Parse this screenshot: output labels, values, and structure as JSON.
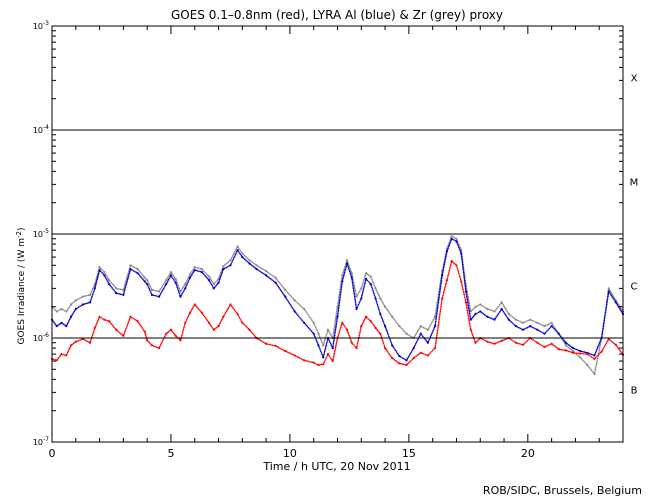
{
  "chart_data": {
    "type": "scatter",
    "title": "GOES 0.1–0.8nm (red), LYRA Al (blue) & Zr (grey) proxy",
    "xlabel": "Time / h UTC, 20 Nov 2011",
    "ylabel": "GOES Irradiance / (W m",
    "ylabel_exponent": "-2",
    "ylabel_close": ")",
    "xlim": [
      0,
      24
    ],
    "ylim": [
      1e-07,
      0.001
    ],
    "yscale": "log",
    "x_ticks": [
      {
        "value": 0,
        "label": "0"
      },
      {
        "value": 5,
        "label": "5"
      },
      {
        "value": 10,
        "label": "10"
      },
      {
        "value": 15,
        "label": "15"
      },
      {
        "value": 20,
        "label": "20"
      }
    ],
    "x_minor_step": 1,
    "y_ticks": [
      {
        "value": 0.001,
        "base": "10",
        "exp": "-3"
      },
      {
        "value": 0.0001,
        "base": "10",
        "exp": "-4"
      },
      {
        "value": 1e-05,
        "base": "10",
        "exp": "-5"
      },
      {
        "value": 1e-06,
        "base": "10",
        "exp": "-6"
      },
      {
        "value": 1e-07,
        "base": "10",
        "exp": "-7"
      }
    ],
    "threshold_lines": [
      0.0001,
      1e-05,
      1e-06
    ],
    "class_labels": [
      {
        "label": "X",
        "value": 0.00032
      },
      {
        "label": "M",
        "value": 3.2e-05
      },
      {
        "label": "C",
        "value": 3.2e-06
      },
      {
        "label": "B",
        "value": 3.2e-07
      }
    ],
    "series": [
      {
        "color": "#ff0000",
        "x": [
          0.0,
          0.2,
          0.4,
          0.6,
          0.8,
          1.0,
          1.3,
          1.6,
          1.8,
          2.0,
          2.2,
          2.4,
          2.7,
          3.0,
          3.3,
          3.6,
          3.9,
          4.0,
          4.2,
          4.5,
          4.8,
          5.0,
          5.2,
          5.4,
          5.6,
          5.8,
          6.0,
          6.3,
          6.6,
          6.8,
          7.0,
          7.2,
          7.5,
          7.8,
          8.0,
          8.3,
          8.6,
          9.0,
          9.4,
          9.8,
          10.2,
          10.6,
          11.0,
          11.2,
          11.4,
          11.6,
          11.8,
          12.0,
          12.2,
          12.4,
          12.6,
          12.8,
          13.0,
          13.2,
          13.4,
          13.6,
          13.8,
          14.0,
          14.3,
          14.6,
          14.9,
          15.2,
          15.5,
          15.8,
          16.1,
          16.4,
          16.6,
          16.8,
          17.0,
          17.2,
          17.4,
          17.6,
          17.8,
          18.0,
          18.3,
          18.6,
          18.9,
          19.2,
          19.5,
          19.8,
          20.1,
          20.4,
          20.7,
          21.0,
          21.3,
          21.6,
          21.9,
          22.2,
          22.5,
          22.8,
          23.1,
          23.4,
          23.7,
          24.0
        ],
        "y": [
          6.3e-07,
          6.1e-07,
          7e-07,
          6.8e-07,
          8.5e-07,
          9.2e-07,
          9.8e-07,
          9e-07,
          1.25e-06,
          1.6e-06,
          1.5e-06,
          1.45e-06,
          1.2e-06,
          1.05e-06,
          1.6e-06,
          1.45e-06,
          1.15e-06,
          9.5e-07,
          8.5e-07,
          8e-07,
          1.1e-06,
          1.2e-06,
          1.05e-06,
          9.5e-07,
          1.4e-06,
          1.75e-06,
          2.1e-06,
          1.75e-06,
          1.4e-06,
          1.2e-06,
          1.3e-06,
          1.6e-06,
          2.1e-06,
          1.7e-06,
          1.4e-06,
          1.2e-06,
          1e-06,
          8.8e-07,
          8.4e-07,
          7.5e-07,
          6.8e-07,
          6.1e-07,
          5.8e-07,
          5.5e-07,
          5.6e-07,
          7e-07,
          6e-07,
          1e-06,
          1.4e-06,
          1.2e-06,
          9e-07,
          8e-07,
          1.3e-06,
          1.6e-06,
          1.45e-06,
          1.25e-06,
          1.1e-06,
          8e-07,
          6.4e-07,
          5.7e-07,
          5.5e-07,
          6.4e-07,
          7.2e-07,
          6.8e-07,
          8e-07,
          2.4e-06,
          3.6e-06,
          5.5e-06,
          5e-06,
          3.5e-06,
          2.2e-06,
          1.2e-06,
          9e-07,
          1e-06,
          9.2e-07,
          8.8e-07,
          9.4e-07,
          1e-06,
          9e-07,
          8.6e-07,
          1e-06,
          9e-07,
          8.2e-07,
          8.8e-07,
          7.8e-07,
          7.6e-07,
          7.2e-07,
          7.1e-07,
          7e-07,
          6.3e-07,
          7.4e-07,
          9.8e-07,
          8.6e-07,
          6.9e-07
        ]
      },
      {
        "color": "#0000cc",
        "x": [
          0.0,
          0.2,
          0.4,
          0.6,
          0.8,
          1.0,
          1.3,
          1.6,
          1.8,
          2.0,
          2.2,
          2.4,
          2.7,
          3.0,
          3.3,
          3.6,
          3.9,
          4.0,
          4.2,
          4.5,
          4.8,
          5.0,
          5.2,
          5.4,
          5.6,
          5.8,
          6.0,
          6.3,
          6.6,
          6.8,
          7.0,
          7.2,
          7.5,
          7.8,
          8.0,
          8.3,
          8.6,
          9.0,
          9.4,
          9.8,
          10.2,
          10.6,
          11.0,
          11.2,
          11.4,
          11.6,
          11.8,
          12.0,
          12.2,
          12.4,
          12.6,
          12.8,
          13.0,
          13.2,
          13.4,
          13.6,
          13.8,
          14.0,
          14.3,
          14.6,
          14.9,
          15.2,
          15.5,
          15.8,
          16.1,
          16.4,
          16.6,
          16.8,
          17.0,
          17.2,
          17.4,
          17.6,
          17.8,
          18.0,
          18.3,
          18.6,
          18.9,
          19.2,
          19.5,
          19.8,
          20.1,
          20.4,
          20.7,
          21.0,
          21.3,
          21.6,
          21.9,
          22.2,
          22.5,
          22.8,
          23.1,
          23.4,
          23.7,
          24.0
        ],
        "y": [
          1.5e-06,
          1.3e-06,
          1.4e-06,
          1.3e-06,
          1.6e-06,
          1.9e-06,
          2.1e-06,
          2.2e-06,
          3e-06,
          4.5e-06,
          4e-06,
          3.3e-06,
          2.7e-06,
          2.6e-06,
          4.6e-06,
          4.2e-06,
          3.5e-06,
          3.3e-06,
          2.6e-06,
          2.5e-06,
          3.3e-06,
          4e-06,
          3.4e-06,
          2.5e-06,
          3e-06,
          3.8e-06,
          4.5e-06,
          4.3e-06,
          3.6e-06,
          3e-06,
          3.4e-06,
          4.6e-06,
          5e-06,
          7e-06,
          6e-06,
          5.2e-06,
          4.6e-06,
          4e-06,
          3.4e-06,
          2.5e-06,
          1.8e-06,
          1.4e-06,
          1.1e-06,
          8.5e-07,
          6.5e-07,
          1e-06,
          8e-07,
          1.6e-06,
          3.5e-06,
          5.2e-06,
          3.8e-06,
          1.9e-06,
          2.4e-06,
          3.7e-06,
          3.3e-06,
          2.4e-06,
          1.7e-06,
          1.3e-06,
          8.5e-07,
          6.7e-07,
          6.1e-07,
          8e-07,
          1.1e-06,
          9e-07,
          1.3e-06,
          4e-06,
          6.8e-06,
          9e-06,
          8.5e-06,
          6.5e-06,
          2.8e-06,
          1.5e-06,
          1.7e-06,
          1.8e-06,
          1.6e-06,
          1.5e-06,
          1.9e-06,
          1.5e-06,
          1.3e-06,
          1.2e-06,
          1.3e-06,
          1.2e-06,
          1.1e-06,
          1.3e-06,
          1.1e-06,
          9e-07,
          8e-07,
          7.5e-07,
          7.2e-07,
          6.8e-07,
          1e-06,
          2.8e-06,
          2.2e-06,
          1.7e-06
        ]
      },
      {
        "color": "#888888",
        "x": [
          0.0,
          0.2,
          0.4,
          0.6,
          0.8,
          1.0,
          1.3,
          1.6,
          1.8,
          2.0,
          2.2,
          2.4,
          2.7,
          3.0,
          3.3,
          3.6,
          3.9,
          4.0,
          4.2,
          4.5,
          4.8,
          5.0,
          5.2,
          5.4,
          5.6,
          5.8,
          6.0,
          6.3,
          6.6,
          6.8,
          7.0,
          7.2,
          7.5,
          7.8,
          8.0,
          8.3,
          8.6,
          9.0,
          9.4,
          9.8,
          10.2,
          10.6,
          11.0,
          11.2,
          11.4,
          11.6,
          11.8,
          12.0,
          12.2,
          12.4,
          12.6,
          12.8,
          13.0,
          13.2,
          13.4,
          13.6,
          13.8,
          14.0,
          14.3,
          14.6,
          14.9,
          15.2,
          15.5,
          15.8,
          16.1,
          16.4,
          16.6,
          16.8,
          17.0,
          17.2,
          17.4,
          17.6,
          17.8,
          18.0,
          18.3,
          18.6,
          18.9,
          19.2,
          19.5,
          19.8,
          20.1,
          20.4,
          20.7,
          21.0,
          21.3,
          21.6,
          21.9,
          22.2,
          22.5,
          22.8,
          23.1,
          23.4,
          23.7,
          24.0
        ],
        "y": [
          2e-06,
          1.8e-06,
          1.9e-06,
          1.8e-06,
          2.1e-06,
          2.3e-06,
          2.5e-06,
          2.6e-06,
          3.3e-06,
          4.8e-06,
          4.3e-06,
          3.6e-06,
          3e-06,
          2.9e-06,
          5e-06,
          4.6e-06,
          3.8e-06,
          3.6e-06,
          2.9e-06,
          2.8e-06,
          3.6e-06,
          4.3e-06,
          3.7e-06,
          2.8e-06,
          3.3e-06,
          4.1e-06,
          4.8e-06,
          4.6e-06,
          3.9e-06,
          3.3e-06,
          3.7e-06,
          4.9e-06,
          5.6e-06,
          7.6e-06,
          6.5e-06,
          5.6e-06,
          5e-06,
          4.4e-06,
          3.8e-06,
          2.9e-06,
          2.3e-06,
          1.9e-06,
          1.4e-06,
          1.1e-06,
          8.5e-07,
          1.2e-06,
          1e-06,
          2e-06,
          4e-06,
          5.6e-06,
          4.2e-06,
          2.5e-06,
          3e-06,
          4.2e-06,
          3.9e-06,
          3e-06,
          2.4e-06,
          2e-06,
          1.6e-06,
          1.3e-06,
          1.1e-06,
          1e-06,
          1.3e-06,
          1.2e-06,
          1.6e-06,
          4.4e-06,
          7.2e-06,
          9.5e-06,
          9e-06,
          7e-06,
          3.2e-06,
          1.8e-06,
          2e-06,
          2.1e-06,
          1.9e-06,
          1.8e-06,
          2.2e-06,
          1.7e-06,
          1.5e-06,
          1.4e-06,
          1.5e-06,
          1.4e-06,
          1.3e-06,
          1.4e-06,
          1.1e-06,
          8.5e-07,
          7.5e-07,
          6.5e-07,
          5.5e-07,
          4.5e-07,
          1e-06,
          3e-06,
          2.3e-06,
          1.8e-06
        ]
      }
    ]
  },
  "footer": {
    "credit": "ROB/SIDC, Brussels, Belgium"
  }
}
